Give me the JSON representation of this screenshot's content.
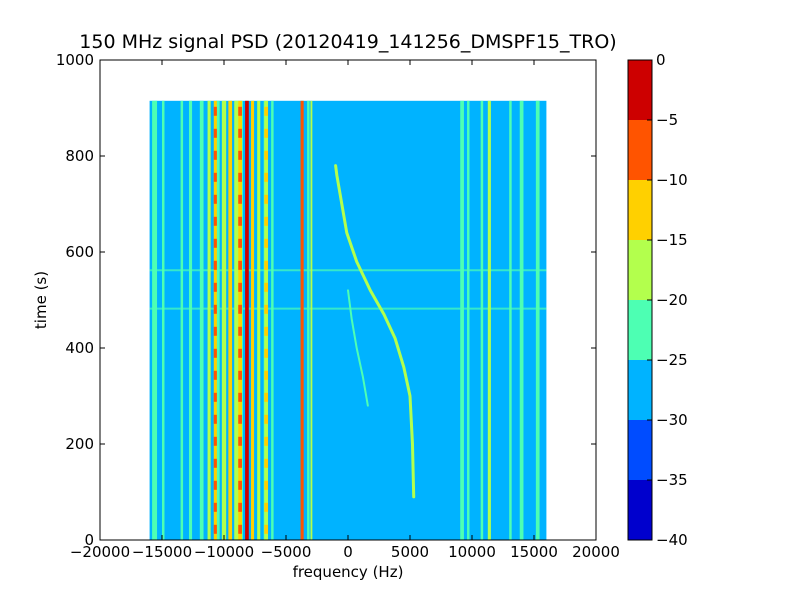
{
  "chart_data": {
    "type": "heatmap",
    "title": "150 MHz signal PSD (20120419_141256_DMSPF15_TRO)",
    "xlabel": "frequency (Hz)",
    "ylabel": "time (s)",
    "xlim": [
      -20000,
      20000
    ],
    "ylim": [
      0,
      1000
    ],
    "x_ticks": [
      -20000,
      -15000,
      -10000,
      -5000,
      0,
      5000,
      10000,
      15000,
      20000
    ],
    "y_ticks": [
      0,
      200,
      400,
      600,
      800,
      1000
    ],
    "data_extent": {
      "x": [
        -16000,
        16000
      ],
      "y": [
        0,
        915
      ]
    },
    "colorbar": {
      "range": [
        -40,
        0
      ],
      "ticks": [
        0,
        -5,
        -10,
        -15,
        -20,
        -25,
        -30,
        -35,
        -40
      ],
      "levels": [
        {
          "from": -40,
          "to": -35,
          "color": "#0000cd"
        },
        {
          "from": -35,
          "to": -30,
          "color": "#004cff"
        },
        {
          "from": -30,
          "to": -25,
          "color": "#00b3ff"
        },
        {
          "from": -25,
          "to": -20,
          "color": "#4dffb3"
        },
        {
          "from": -20,
          "to": -15,
          "color": "#b3ff4d"
        },
        {
          "from": -15,
          "to": -10,
          "color": "#ffd000"
        },
        {
          "from": -10,
          "to": -5,
          "color": "#ff5400"
        },
        {
          "from": -5,
          "to": 0,
          "color": "#cd0000"
        }
      ]
    },
    "background_level": -27.5,
    "vertical_bands": [
      {
        "x": -15600,
        "width": 400,
        "level": -22.5
      },
      {
        "x": -14900,
        "width": 200,
        "level": -22.5
      },
      {
        "x": -13400,
        "width": 200,
        "level": -22.5
      },
      {
        "x": -12700,
        "width": 250,
        "level": -22.5
      },
      {
        "x": -11800,
        "width": 300,
        "level": -22.5
      },
      {
        "x": -11200,
        "width": 250,
        "level": -17.5
      },
      {
        "x": -10500,
        "width": 300,
        "level": -22.5
      },
      {
        "x": -10000,
        "width": 350,
        "level": -17.5
      },
      {
        "x": -9500,
        "width": 300,
        "level": -12.5
      },
      {
        "x": -9000,
        "width": 350,
        "level": -17.5
      },
      {
        "x": -8600,
        "width": 250,
        "level": -22.5
      },
      {
        "x": -8150,
        "width": 300,
        "level": -2.5
      },
      {
        "x": -7700,
        "width": 250,
        "level": -12.5
      },
      {
        "x": -7200,
        "width": 250,
        "level": -17.5
      },
      {
        "x": -6700,
        "width": 200,
        "level": -22.5
      },
      {
        "x": -6100,
        "width": 200,
        "level": -22.5
      },
      {
        "x": -3700,
        "width": 250,
        "level": -7.5
      },
      {
        "x": -3200,
        "width": 200,
        "level": -22.5
      },
      {
        "x": -2950,
        "width": 150,
        "level": -17.5
      },
      {
        "x": 9200,
        "width": 300,
        "level": -22.5
      },
      {
        "x": 9700,
        "width": 200,
        "level": -22.5
      },
      {
        "x": 10800,
        "width": 200,
        "level": -22.5
      },
      {
        "x": 11400,
        "width": 250,
        "level": -17.5
      },
      {
        "x": 13100,
        "width": 200,
        "level": -22.5
      },
      {
        "x": 14000,
        "width": 300,
        "level": -22.5
      },
      {
        "x": 15300,
        "width": 300,
        "level": -22.5
      }
    ],
    "dashed_bands": [
      {
        "x": -10700,
        "width": 250,
        "level": -12.5
      },
      {
        "x": -8700,
        "width": 300,
        "level": -12.5
      },
      {
        "x": -6600,
        "width": 300,
        "level": -17.5
      }
    ],
    "series": [
      {
        "level": -17.5,
        "x": [
          5300,
          5200,
          5000,
          4500,
          3800,
          2900,
          1800,
          700,
          -100,
          -500,
          -900,
          -1000
        ],
        "y": [
          90,
          200,
          300,
          360,
          420,
          470,
          520,
          580,
          640,
          700,
          760,
          780
        ]
      },
      {
        "level": -22.5,
        "x": [
          1600,
          1200,
          700,
          300,
          0
        ],
        "y": [
          280,
          340,
          400,
          460,
          520
        ]
      }
    ],
    "horizontal_lines": [
      {
        "y": 482,
        "level": -22.5
      },
      {
        "y": 562,
        "level": -22.5
      }
    ]
  }
}
